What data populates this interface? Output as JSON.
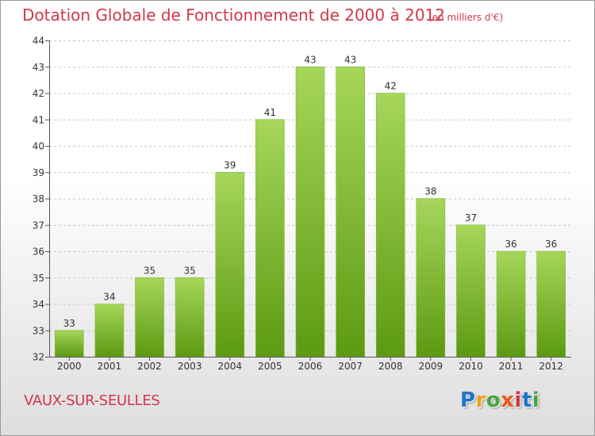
{
  "header": {
    "title": "Dotation Globale de Fonctionnement de 2000 à 2012",
    "subtitle": "(en milliers d'€)"
  },
  "footer": {
    "place": "VAUX-SUR-SEULLES",
    "logo_text": "Proxiti",
    "logo_colors": [
      "#1a75c9",
      "#e8a316",
      "#4aa53c",
      "#e8581c",
      "#d2374b",
      "#1a75c9",
      "#4aa53c"
    ]
  },
  "colors": {
    "title": "#d2374b",
    "bar_top": "#a6d65a",
    "bar_bottom": "#5c9a12",
    "axis": "#555555",
    "grid": "#c8c8c8"
  },
  "chart_data": {
    "type": "bar",
    "categories": [
      "2000",
      "2001",
      "2002",
      "2003",
      "2004",
      "2005",
      "2006",
      "2007",
      "2008",
      "2009",
      "2010",
      "2011",
      "2012"
    ],
    "values": [
      33,
      34,
      35,
      35,
      39,
      41,
      43,
      43,
      42,
      38,
      37,
      36,
      36
    ],
    "data_labels": [
      "33",
      "34",
      "35",
      "35",
      "39",
      "41",
      "43",
      "43",
      "42",
      "38",
      "37",
      "36",
      "36"
    ],
    "title": "Dotation Globale de Fonctionnement de 2000 à 2012",
    "subtitle": "(en milliers d'€)",
    "ylim": [
      32,
      44
    ],
    "yticks": [
      "32",
      "33",
      "34",
      "35",
      "36",
      "37",
      "38",
      "39",
      "40",
      "41",
      "42",
      "43",
      "44"
    ],
    "grid": true
  }
}
